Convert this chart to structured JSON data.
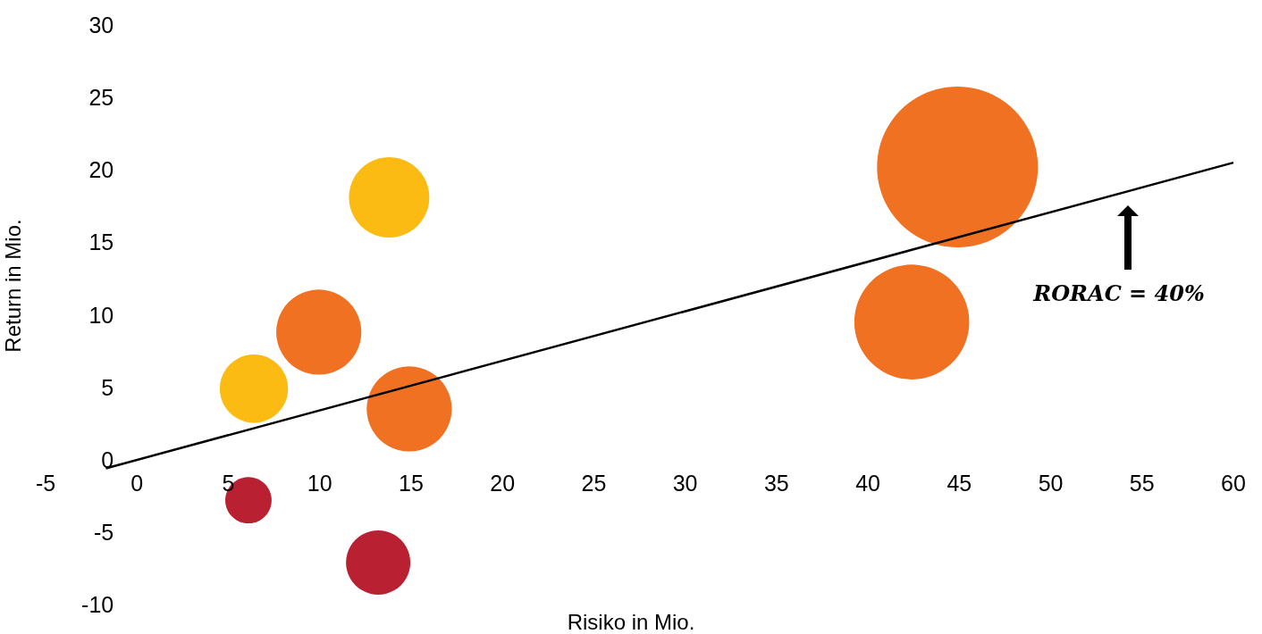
{
  "chart_data": {
    "type": "bubble",
    "xlabel": "Risiko in Mio.",
    "ylabel": "Return in Mio.",
    "xlim": [
      -5,
      60
    ],
    "xticks": [
      -5,
      0,
      5,
      10,
      15,
      20,
      25,
      30,
      35,
      40,
      45,
      50,
      55,
      60
    ],
    "ylim": [
      -10,
      30
    ],
    "yticks": [
      -10,
      -5,
      0,
      5,
      10,
      15,
      20,
      25,
      30
    ],
    "grid": false,
    "marker": "circle",
    "annotations": [
      "RORAC = 40%"
    ],
    "series": [
      {
        "type": "line",
        "x": [
          -1.7,
          60
        ],
        "values": [
          -0.6,
          20.5
        ],
        "color": "#000000",
        "line_style": "solid",
        "marker": "none"
      },
      {
        "color": "#f07122",
        "x": [
          44.9,
          42.4,
          9.95,
          14.9
        ],
        "values": [
          20.2,
          9.5,
          8.8,
          3.5
        ],
        "sizes": [
          1,
          0.51,
          0.28,
          0.28
        ]
      },
      {
        "color": "#fbbb13",
        "x": [
          13.8,
          6.4
        ],
        "values": [
          18.1,
          4.9
        ],
        "sizes": [
          0.25,
          0.18
        ]
      },
      {
        "color": "#b92032",
        "x": [
          6.1,
          13.2
        ],
        "values": [
          -2.8,
          -7.1
        ],
        "sizes": [
          0.083,
          0.16
        ]
      }
    ]
  }
}
